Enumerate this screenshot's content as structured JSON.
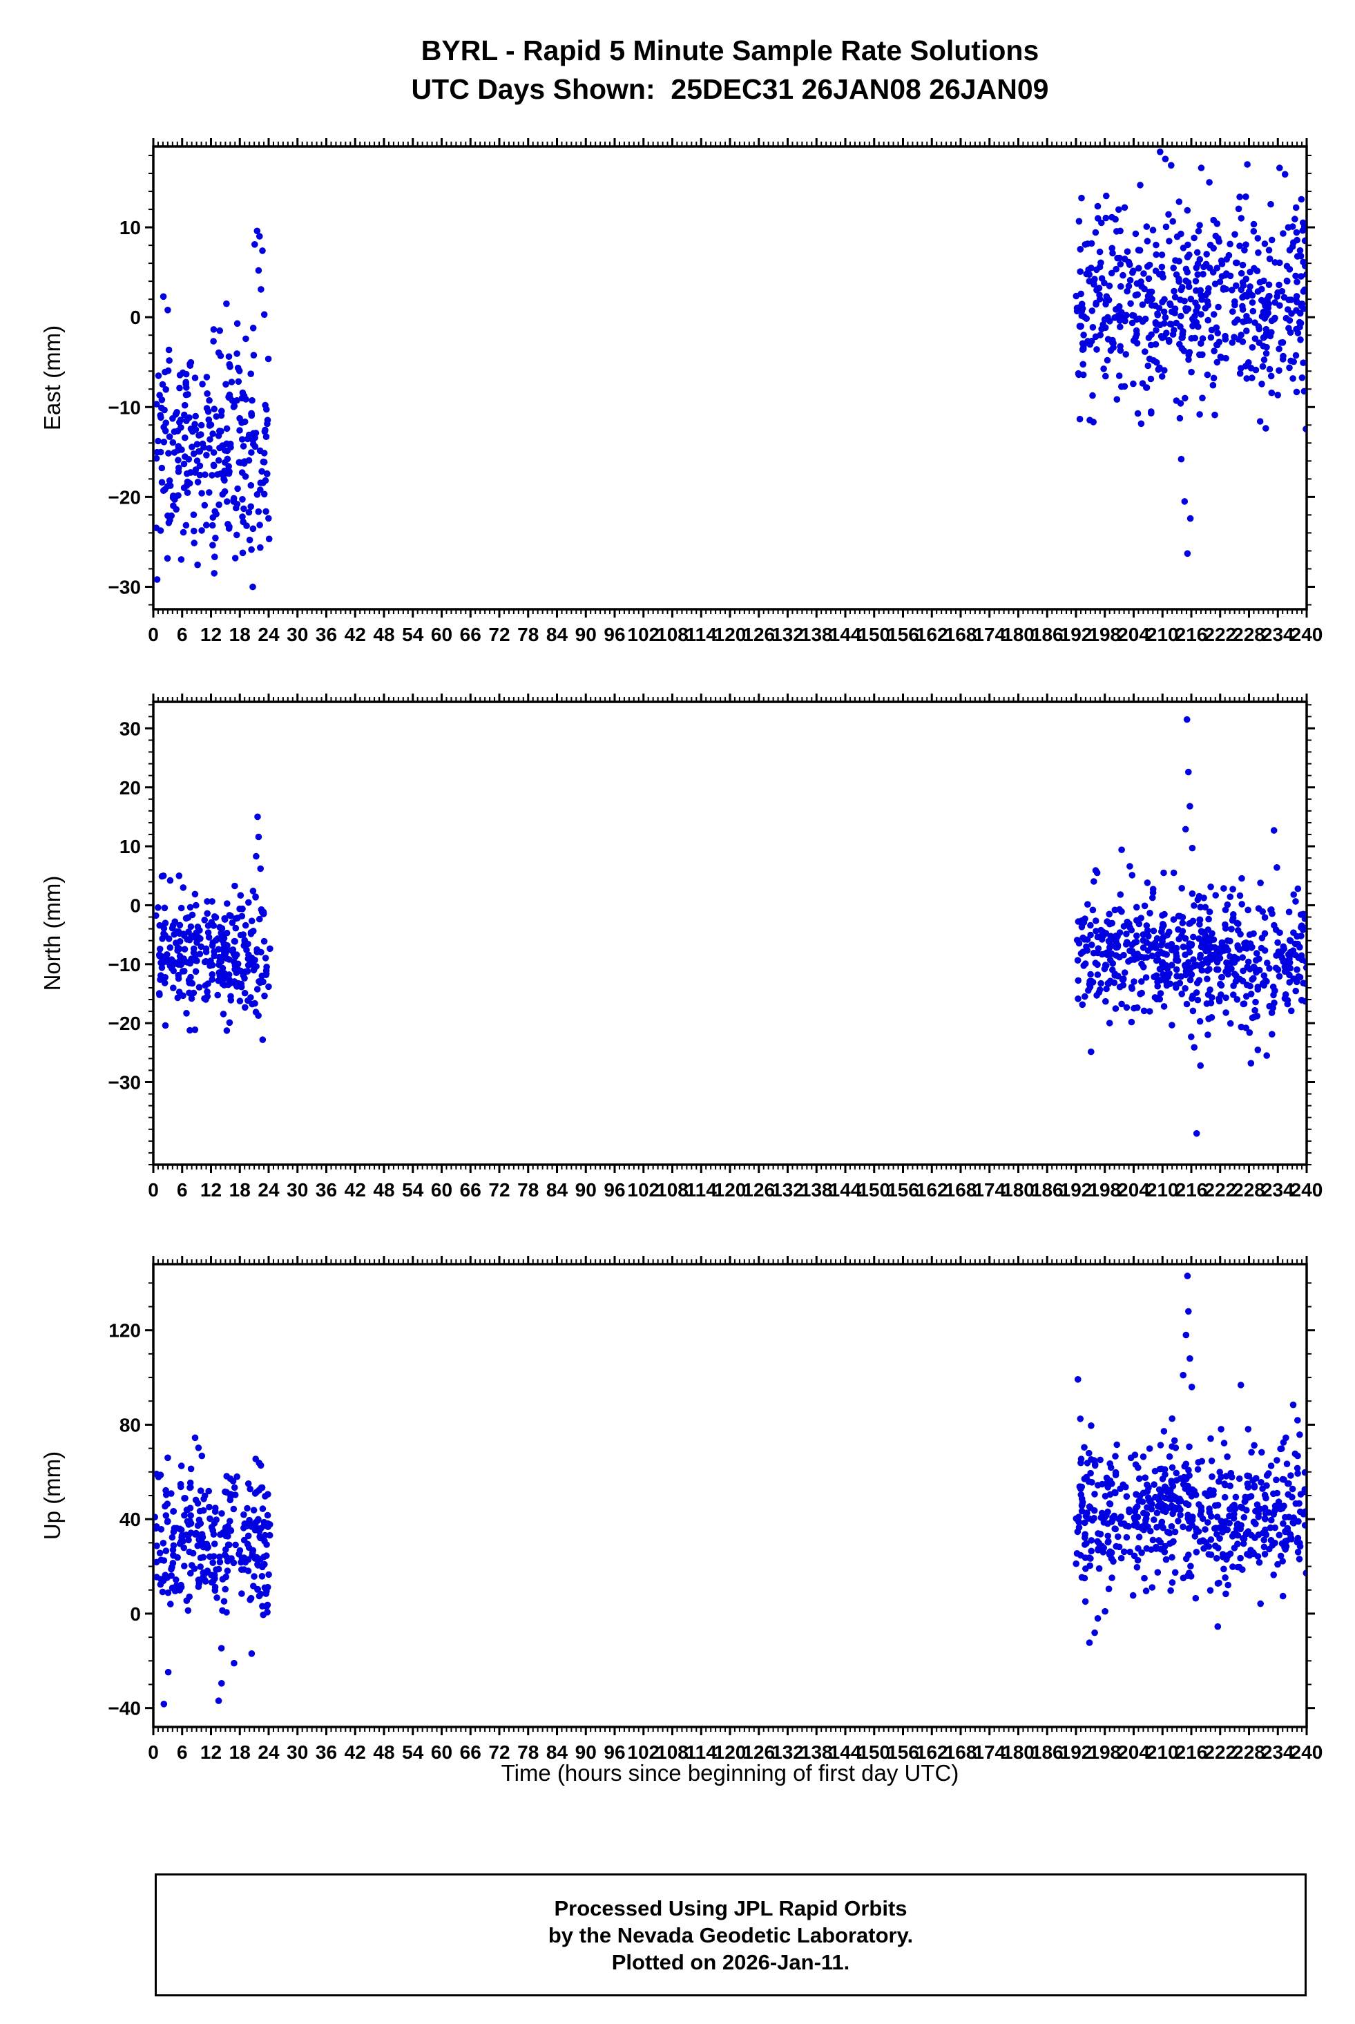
{
  "title": {
    "line1": "BYRL - Rapid 5 Minute Sample Rate Solutions",
    "line2": "UTC Days Shown:  25DEC31 26JAN08 26JAN09"
  },
  "axis": {
    "x_label": "Time (hours since beginning of first day UTC)"
  },
  "x_axis": {
    "lim": [
      0,
      240
    ],
    "ticks": [
      0,
      6,
      12,
      18,
      24,
      30,
      36,
      42,
      48,
      54,
      60,
      66,
      72,
      78,
      84,
      90,
      96,
      102,
      108,
      114,
      120,
      126,
      132,
      138,
      144,
      150,
      156,
      162,
      168,
      174,
      180,
      186,
      192,
      198,
      204,
      210,
      216,
      222,
      228,
      234,
      240
    ],
    "minor_step": 1
  },
  "colors": {
    "point": "#0000e0",
    "frame": "#000000",
    "background": "#ffffff"
  },
  "footer": {
    "line1": "Processed Using JPL Rapid Orbits",
    "line2": "by the Nevada Geodetic Laboratory.",
    "line3": "Plotted on 2026-Jan-11."
  },
  "chart_data": [
    {
      "type": "scatter",
      "ylabel": "East (mm)",
      "ylim": [
        -32.5,
        19
      ],
      "yticks": [
        -30,
        -20,
        -10,
        0,
        10
      ],
      "y_minor_step": 2,
      "xlim": [
        0,
        240
      ],
      "legend": "none",
      "grid": false,
      "clusters": [
        {
          "x_range": [
            0.3,
            24.3
          ],
          "count": 290,
          "y_mean": -14.5,
          "y_std": 6.0,
          "y_clip": [
            -31.5,
            1.5
          ],
          "seed": 101
        },
        {
          "x_range": [
            192,
            240
          ],
          "count": 560,
          "y_mean": 1.5,
          "y_std": 5.6,
          "y_clip": [
            -19,
            17
          ],
          "seed": 102
        }
      ],
      "outliers": [
        [
          21.6,
          9.6
        ],
        [
          22.1,
          9.0
        ],
        [
          21.1,
          8.1
        ],
        [
          22.7,
          7.4
        ],
        [
          21.9,
          5.2
        ],
        [
          22.4,
          3.1
        ],
        [
          23.1,
          0.3
        ],
        [
          20.8,
          -1.2
        ],
        [
          2.1,
          2.3
        ],
        [
          3.0,
          0.8
        ],
        [
          209.5,
          18.4
        ],
        [
          210.6,
          17.6
        ],
        [
          211.8,
          16.9
        ],
        [
          214.6,
          -20.5
        ],
        [
          215.2,
          -26.3
        ],
        [
          215.8,
          -22.4
        ],
        [
          213.9,
          -15.8
        ],
        [
          235.5,
          15.9
        ],
        [
          237.8,
          12.2
        ],
        [
          198.3,
          13.5
        ]
      ]
    },
    {
      "type": "scatter",
      "ylabel": "North (mm)",
      "ylim": [
        -44,
        34.5
      ],
      "yticks": [
        -30,
        -20,
        -10,
        0,
        10,
        20,
        30
      ],
      "y_minor_step": 2,
      "xlim": [
        0,
        240
      ],
      "legend": "none",
      "grid": false,
      "clusters": [
        {
          "x_range": [
            0.3,
            24.3
          ],
          "count": 290,
          "y_mean": -9.0,
          "y_std": 5.0,
          "y_clip": [
            -22.8,
            5.0
          ],
          "seed": 201
        },
        {
          "x_range": [
            192,
            240
          ],
          "count": 560,
          "y_mean": -8.5,
          "y_std": 5.4,
          "y_clip": [
            -25.5,
            5.5
          ],
          "seed": 202
        }
      ],
      "outliers": [
        [
          21.7,
          15.0
        ],
        [
          21.9,
          11.6
        ],
        [
          21.4,
          8.3
        ],
        [
          22.3,
          6.2
        ],
        [
          1.8,
          4.9
        ],
        [
          3.5,
          4.2
        ],
        [
          215.1,
          31.5
        ],
        [
          215.4,
          22.6
        ],
        [
          215.7,
          16.8
        ],
        [
          214.8,
          12.9
        ],
        [
          216.2,
          9.7
        ],
        [
          217.1,
          -38.7
        ],
        [
          217.9,
          -27.2
        ],
        [
          216.6,
          -24.1
        ],
        [
          228.4,
          -26.8
        ],
        [
          233.2,
          12.7
        ],
        [
          233.8,
          6.4
        ],
        [
          201.5,
          9.4
        ],
        [
          203.2,
          6.6
        ],
        [
          196.1,
          5.9
        ]
      ]
    },
    {
      "type": "scatter",
      "ylabel": "Up (mm)",
      "ylim": [
        -48,
        148
      ],
      "yticks": [
        -40,
        0,
        40,
        80,
        120
      ],
      "y_minor_step": 10,
      "xlim": [
        0,
        240
      ],
      "legend": "none",
      "grid": false,
      "clusters": [
        {
          "x_range": [
            0.3,
            24.3
          ],
          "count": 290,
          "y_mean": 30,
          "y_std": 15,
          "y_clip": [
            -18,
            66
          ],
          "seed": 301
        },
        {
          "x_range": [
            192,
            240
          ],
          "count": 570,
          "y_mean": 42,
          "y_std": 15,
          "y_clip": [
            -6,
            93
          ],
          "seed": 302
        }
      ],
      "outliers": [
        [
          8.7,
          74.5
        ],
        [
          9.4,
          70.2
        ],
        [
          10.1,
          66.8
        ],
        [
          21.3,
          65.5
        ],
        [
          22.0,
          63.8
        ],
        [
          2.2,
          -38.3
        ],
        [
          13.6,
          -36.9
        ],
        [
          14.2,
          -29.5
        ],
        [
          3.1,
          -24.8
        ],
        [
          16.8,
          -21.0
        ],
        [
          215.2,
          143
        ],
        [
          215.4,
          128
        ],
        [
          214.9,
          118
        ],
        [
          215.7,
          108
        ],
        [
          214.3,
          101
        ],
        [
          216.1,
          96
        ],
        [
          192.4,
          99.2
        ],
        [
          192.9,
          82.5
        ],
        [
          226.3,
          96.8
        ],
        [
          237.2,
          88.4
        ],
        [
          238.1,
          81.9
        ],
        [
          194.8,
          -12.3
        ],
        [
          195.9,
          -8.1
        ],
        [
          216.9,
          6.5
        ],
        [
          230.4,
          4.2
        ],
        [
          221.5,
          -5.5
        ]
      ]
    }
  ]
}
